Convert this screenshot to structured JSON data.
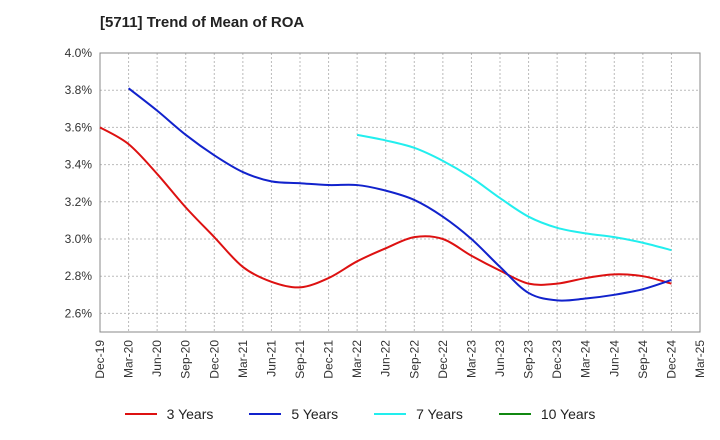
{
  "chart_data": {
    "type": "line",
    "title": "[5711]  Trend of Mean of ROA",
    "xlabel": "",
    "ylabel": "",
    "x": [
      "Dec-19",
      "Mar-20",
      "Jun-20",
      "Sep-20",
      "Dec-20",
      "Mar-21",
      "Jun-21",
      "Sep-21",
      "Dec-21",
      "Mar-22",
      "Jun-22",
      "Sep-22",
      "Dec-22",
      "Mar-23",
      "Jun-23",
      "Sep-23",
      "Dec-23",
      "Mar-24",
      "Jun-24",
      "Sep-24",
      "Dec-24",
      "Mar-25"
    ],
    "y_ticks": [
      "4.0%",
      "3.8%",
      "3.6%",
      "3.4%",
      "3.2%",
      "3.0%",
      "2.8%",
      "2.6%"
    ],
    "ylim": [
      2.5,
      4.0
    ],
    "grid": true,
    "legend_position": "bottom",
    "series": [
      {
        "name": "3 Years",
        "color": "#dd1111",
        "values": [
          3.6,
          3.51,
          3.35,
          3.17,
          3.01,
          2.85,
          2.77,
          2.74,
          2.79,
          2.88,
          2.95,
          3.01,
          3.0,
          2.91,
          2.83,
          2.76,
          2.76,
          2.79,
          2.81,
          2.8,
          2.76,
          null
        ]
      },
      {
        "name": "5 Years",
        "color": "#1122cc",
        "values": [
          null,
          3.81,
          3.69,
          3.56,
          3.45,
          3.36,
          3.31,
          3.3,
          3.29,
          3.29,
          3.26,
          3.21,
          3.12,
          3.0,
          2.85,
          2.71,
          2.67,
          2.68,
          2.7,
          2.73,
          2.78,
          null
        ]
      },
      {
        "name": "7 Years",
        "color": "#22eeee",
        "values": [
          null,
          null,
          null,
          null,
          null,
          null,
          null,
          null,
          null,
          3.56,
          3.53,
          3.49,
          3.42,
          3.33,
          3.22,
          3.12,
          3.06,
          3.03,
          3.01,
          2.98,
          2.94,
          null
        ]
      },
      {
        "name": "10 Years",
        "color": "#118811",
        "values": [
          null,
          null,
          null,
          null,
          null,
          null,
          null,
          null,
          null,
          null,
          null,
          null,
          null,
          null,
          null,
          null,
          null,
          null,
          null,
          null,
          null,
          null
        ]
      }
    ]
  }
}
